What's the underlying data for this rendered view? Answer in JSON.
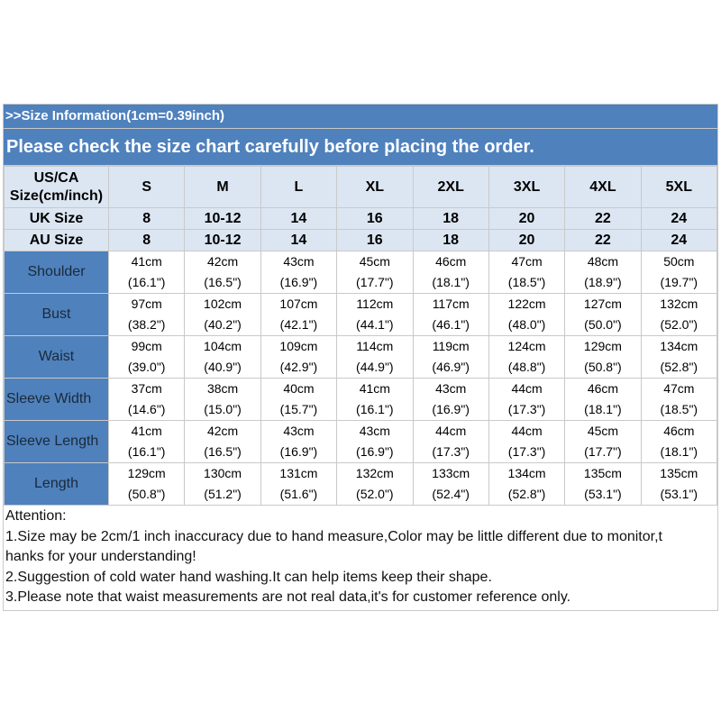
{
  "info_title": ">>Size Information(1cm=0.39inch)",
  "notice": "Please check the size chart carefully before placing the order.",
  "header": {
    "us_label_line1": "US/CA",
    "us_label_line2": "Size(cm/inch)",
    "uk_label": "UK Size",
    "au_label": "AU Size",
    "sizes": [
      "S",
      "M",
      "L",
      "XL",
      "2XL",
      "3XL",
      "4XL",
      "5XL"
    ],
    "uk": [
      "8",
      "10-12",
      "14",
      "16",
      "18",
      "20",
      "22",
      "24"
    ],
    "au": [
      "8",
      "10-12",
      "14",
      "16",
      "18",
      "20",
      "22",
      "24"
    ]
  },
  "rows": [
    {
      "label": "Shoulder",
      "cm": [
        "41cm",
        "42cm",
        "43cm",
        "45cm",
        "46cm",
        "47cm",
        "48cm",
        "50cm"
      ],
      "inch": [
        "(16.1\")",
        "(16.5\")",
        "(16.9\")",
        "(17.7\")",
        "(18.1\")",
        "(18.5\")",
        "(18.9\")",
        "(19.7\")"
      ]
    },
    {
      "label": "Bust",
      "cm": [
        "97cm",
        "102cm",
        "107cm",
        "112cm",
        "117cm",
        "122cm",
        "127cm",
        "132cm"
      ],
      "inch": [
        "(38.2\")",
        "(40.2\")",
        "(42.1\")",
        "(44.1\")",
        "(46.1\")",
        "(48.0\")",
        "(50.0\")",
        "(52.0\")"
      ]
    },
    {
      "label": "Waist",
      "cm": [
        "99cm",
        "104cm",
        "109cm",
        "114cm",
        "119cm",
        "124cm",
        "129cm",
        "134cm"
      ],
      "inch": [
        "(39.0\")",
        "(40.9\")",
        "(42.9\")",
        "(44.9\")",
        "(46.9\")",
        "(48.8\")",
        "(50.8\")",
        "(52.8\")"
      ]
    },
    {
      "label": "Sleeve Width",
      "cm": [
        "37cm",
        "38cm",
        "40cm",
        "41cm",
        "43cm",
        "44cm",
        "46cm",
        "47cm"
      ],
      "inch": [
        "(14.6\")",
        "(15.0\")",
        "(15.7\")",
        "(16.1\")",
        "(16.9\")",
        "(17.3\")",
        "(18.1\")",
        "(18.5\")"
      ]
    },
    {
      "label": "Sleeve Length",
      "cm": [
        "41cm",
        "42cm",
        "43cm",
        "43cm",
        "44cm",
        "44cm",
        "45cm",
        "46cm"
      ],
      "inch": [
        "(16.1\")",
        "(16.5\")",
        "(16.9\")",
        "(16.9\")",
        "(17.3\")",
        "(17.3\")",
        "(17.7\")",
        "(18.1\")"
      ]
    },
    {
      "label": "Length",
      "cm": [
        "129cm",
        "130cm",
        "131cm",
        "132cm",
        "133cm",
        "134cm",
        "135cm",
        "135cm"
      ],
      "inch": [
        "(50.8\")",
        "(51.2\")",
        "(51.6\")",
        "(52.0\")",
        "(52.4\")",
        "(52.8\")",
        "(53.1\")",
        "(53.1\")"
      ]
    }
  ],
  "notes": {
    "heading": "Attention:",
    "line1a": "1.Size may be 2cm/1 inch inaccuracy due to hand measure,Color may be little different due to monitor,t",
    "line1b": "hanks for your understanding!",
    "line2": "2.Suggestion of cold water hand washing.It can help items keep their shape.",
    "line3": "3.Please note that waist measurements are not real data,it's for customer reference only."
  },
  "colors": {
    "header_blue": "#4f81bd",
    "light_blue": "#dce6f2",
    "border": "#c9c9c9"
  }
}
